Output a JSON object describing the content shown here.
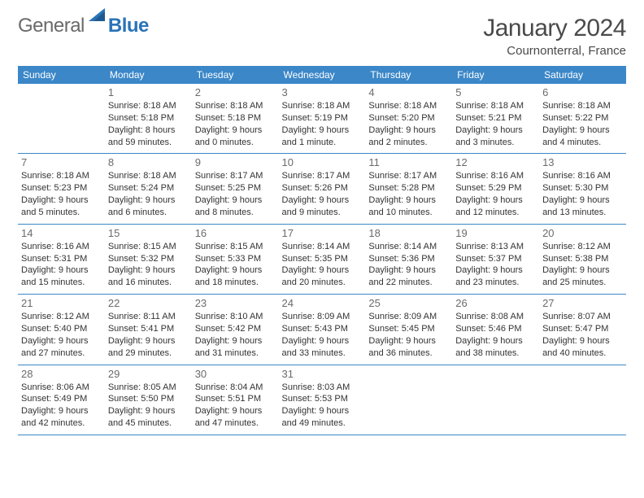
{
  "logo": {
    "general": "General",
    "blue": "Blue"
  },
  "title": "January 2024",
  "location": "Cournonterral, France",
  "colors": {
    "header_bg": "#3b87c8",
    "header_text": "#ffffff",
    "rule": "#3b87c8",
    "brand_blue": "#2a73b8",
    "brand_gray": "#6a6a6a",
    "body_text": "#333333"
  },
  "weekdays": [
    "Sunday",
    "Monday",
    "Tuesday",
    "Wednesday",
    "Thursday",
    "Friday",
    "Saturday"
  ],
  "weeks": [
    [
      null,
      {
        "n": "1",
        "sr": "Sunrise: 8:18 AM",
        "ss": "Sunset: 5:18 PM",
        "d1": "Daylight: 8 hours",
        "d2": "and 59 minutes."
      },
      {
        "n": "2",
        "sr": "Sunrise: 8:18 AM",
        "ss": "Sunset: 5:18 PM",
        "d1": "Daylight: 9 hours",
        "d2": "and 0 minutes."
      },
      {
        "n": "3",
        "sr": "Sunrise: 8:18 AM",
        "ss": "Sunset: 5:19 PM",
        "d1": "Daylight: 9 hours",
        "d2": "and 1 minute."
      },
      {
        "n": "4",
        "sr": "Sunrise: 8:18 AM",
        "ss": "Sunset: 5:20 PM",
        "d1": "Daylight: 9 hours",
        "d2": "and 2 minutes."
      },
      {
        "n": "5",
        "sr": "Sunrise: 8:18 AM",
        "ss": "Sunset: 5:21 PM",
        "d1": "Daylight: 9 hours",
        "d2": "and 3 minutes."
      },
      {
        "n": "6",
        "sr": "Sunrise: 8:18 AM",
        "ss": "Sunset: 5:22 PM",
        "d1": "Daylight: 9 hours",
        "d2": "and 4 minutes."
      }
    ],
    [
      {
        "n": "7",
        "sr": "Sunrise: 8:18 AM",
        "ss": "Sunset: 5:23 PM",
        "d1": "Daylight: 9 hours",
        "d2": "and 5 minutes."
      },
      {
        "n": "8",
        "sr": "Sunrise: 8:18 AM",
        "ss": "Sunset: 5:24 PM",
        "d1": "Daylight: 9 hours",
        "d2": "and 6 minutes."
      },
      {
        "n": "9",
        "sr": "Sunrise: 8:17 AM",
        "ss": "Sunset: 5:25 PM",
        "d1": "Daylight: 9 hours",
        "d2": "and 8 minutes."
      },
      {
        "n": "10",
        "sr": "Sunrise: 8:17 AM",
        "ss": "Sunset: 5:26 PM",
        "d1": "Daylight: 9 hours",
        "d2": "and 9 minutes."
      },
      {
        "n": "11",
        "sr": "Sunrise: 8:17 AM",
        "ss": "Sunset: 5:28 PM",
        "d1": "Daylight: 9 hours",
        "d2": "and 10 minutes."
      },
      {
        "n": "12",
        "sr": "Sunrise: 8:16 AM",
        "ss": "Sunset: 5:29 PM",
        "d1": "Daylight: 9 hours",
        "d2": "and 12 minutes."
      },
      {
        "n": "13",
        "sr": "Sunrise: 8:16 AM",
        "ss": "Sunset: 5:30 PM",
        "d1": "Daylight: 9 hours",
        "d2": "and 13 minutes."
      }
    ],
    [
      {
        "n": "14",
        "sr": "Sunrise: 8:16 AM",
        "ss": "Sunset: 5:31 PM",
        "d1": "Daylight: 9 hours",
        "d2": "and 15 minutes."
      },
      {
        "n": "15",
        "sr": "Sunrise: 8:15 AM",
        "ss": "Sunset: 5:32 PM",
        "d1": "Daylight: 9 hours",
        "d2": "and 16 minutes."
      },
      {
        "n": "16",
        "sr": "Sunrise: 8:15 AM",
        "ss": "Sunset: 5:33 PM",
        "d1": "Daylight: 9 hours",
        "d2": "and 18 minutes."
      },
      {
        "n": "17",
        "sr": "Sunrise: 8:14 AM",
        "ss": "Sunset: 5:35 PM",
        "d1": "Daylight: 9 hours",
        "d2": "and 20 minutes."
      },
      {
        "n": "18",
        "sr": "Sunrise: 8:14 AM",
        "ss": "Sunset: 5:36 PM",
        "d1": "Daylight: 9 hours",
        "d2": "and 22 minutes."
      },
      {
        "n": "19",
        "sr": "Sunrise: 8:13 AM",
        "ss": "Sunset: 5:37 PM",
        "d1": "Daylight: 9 hours",
        "d2": "and 23 minutes."
      },
      {
        "n": "20",
        "sr": "Sunrise: 8:12 AM",
        "ss": "Sunset: 5:38 PM",
        "d1": "Daylight: 9 hours",
        "d2": "and 25 minutes."
      }
    ],
    [
      {
        "n": "21",
        "sr": "Sunrise: 8:12 AM",
        "ss": "Sunset: 5:40 PM",
        "d1": "Daylight: 9 hours",
        "d2": "and 27 minutes."
      },
      {
        "n": "22",
        "sr": "Sunrise: 8:11 AM",
        "ss": "Sunset: 5:41 PM",
        "d1": "Daylight: 9 hours",
        "d2": "and 29 minutes."
      },
      {
        "n": "23",
        "sr": "Sunrise: 8:10 AM",
        "ss": "Sunset: 5:42 PM",
        "d1": "Daylight: 9 hours",
        "d2": "and 31 minutes."
      },
      {
        "n": "24",
        "sr": "Sunrise: 8:09 AM",
        "ss": "Sunset: 5:43 PM",
        "d1": "Daylight: 9 hours",
        "d2": "and 33 minutes."
      },
      {
        "n": "25",
        "sr": "Sunrise: 8:09 AM",
        "ss": "Sunset: 5:45 PM",
        "d1": "Daylight: 9 hours",
        "d2": "and 36 minutes."
      },
      {
        "n": "26",
        "sr": "Sunrise: 8:08 AM",
        "ss": "Sunset: 5:46 PM",
        "d1": "Daylight: 9 hours",
        "d2": "and 38 minutes."
      },
      {
        "n": "27",
        "sr": "Sunrise: 8:07 AM",
        "ss": "Sunset: 5:47 PM",
        "d1": "Daylight: 9 hours",
        "d2": "and 40 minutes."
      }
    ],
    [
      {
        "n": "28",
        "sr": "Sunrise: 8:06 AM",
        "ss": "Sunset: 5:49 PM",
        "d1": "Daylight: 9 hours",
        "d2": "and 42 minutes."
      },
      {
        "n": "29",
        "sr": "Sunrise: 8:05 AM",
        "ss": "Sunset: 5:50 PM",
        "d1": "Daylight: 9 hours",
        "d2": "and 45 minutes."
      },
      {
        "n": "30",
        "sr": "Sunrise: 8:04 AM",
        "ss": "Sunset: 5:51 PM",
        "d1": "Daylight: 9 hours",
        "d2": "and 47 minutes."
      },
      {
        "n": "31",
        "sr": "Sunrise: 8:03 AM",
        "ss": "Sunset: 5:53 PM",
        "d1": "Daylight: 9 hours",
        "d2": "and 49 minutes."
      },
      null,
      null,
      null
    ]
  ]
}
